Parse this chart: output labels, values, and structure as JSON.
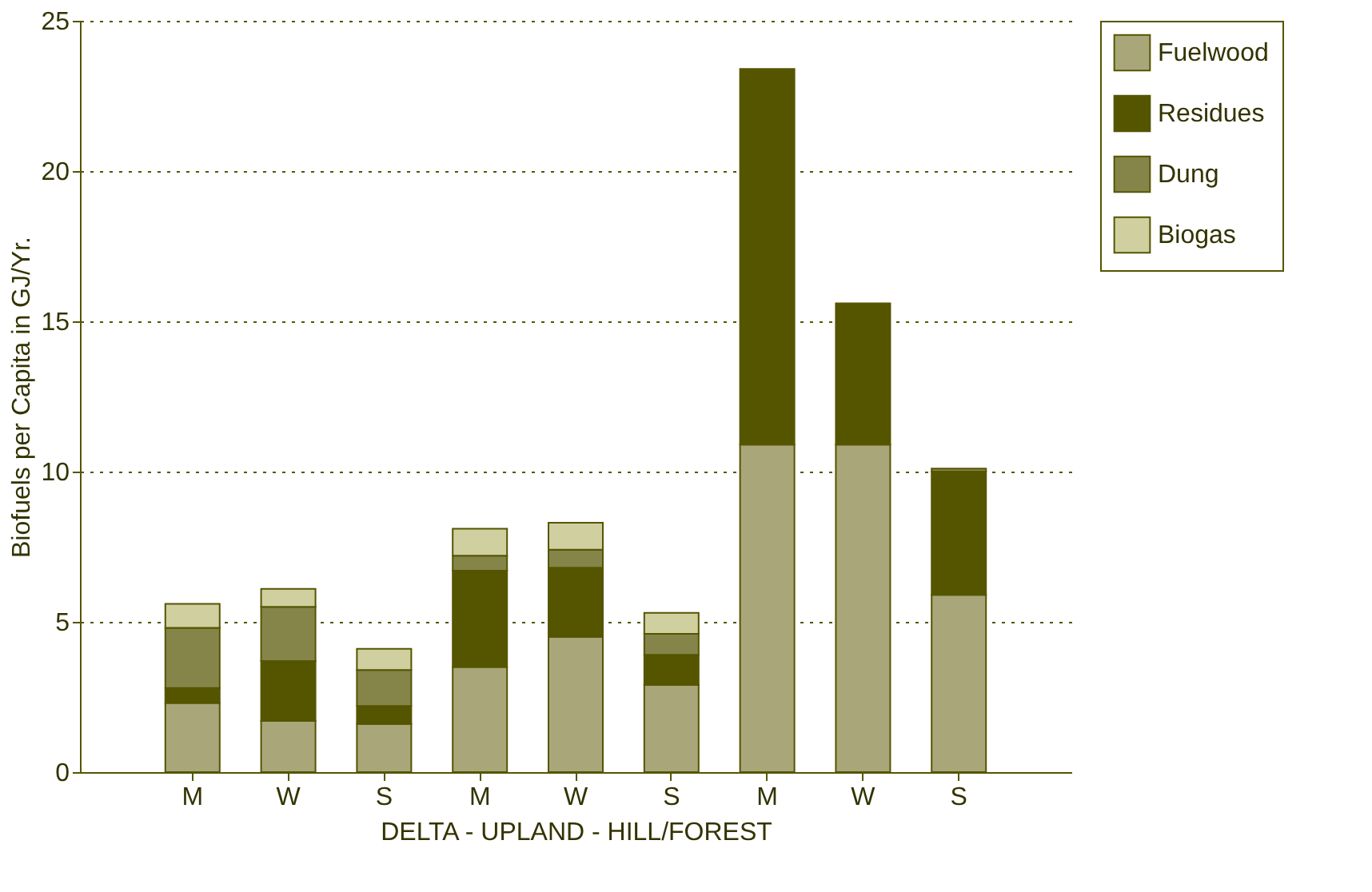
{
  "chart_data": {
    "type": "bar",
    "stacked": true,
    "categories": [
      "M",
      "W",
      "S",
      "M",
      "W",
      "S",
      "M",
      "W",
      "S"
    ],
    "xlabel": "DELTA  -  UPLAND  -  HILL/FOREST",
    "ylabel": "Biofuels per Capita in GJ/Yr.",
    "series": [
      {
        "name": "Fuelwood",
        "color": "#a9a77a",
        "values": [
          2.3,
          1.7,
          1.6,
          3.5,
          4.5,
          2.9,
          10.9,
          10.9,
          5.9
        ]
      },
      {
        "name": "Residues",
        "color": "#555500",
        "values": [
          0.5,
          2.0,
          0.6,
          3.2,
          2.3,
          1.0,
          12.5,
          4.7,
          4.1
        ]
      },
      {
        "name": "Dung",
        "color": "#85854a",
        "values": [
          2.0,
          1.8,
          1.2,
          0.5,
          0.6,
          0.7,
          0,
          0,
          0.1
        ]
      },
      {
        "name": "Biogas",
        "color": "#cfcfa0",
        "values": [
          0.8,
          0.6,
          0.7,
          0.9,
          0.9,
          0.7,
          0,
          0,
          0
        ]
      }
    ],
    "ylim": [
      0,
      25
    ],
    "yticks": [
      0,
      5,
      10,
      15,
      20,
      25
    ],
    "grid": "y",
    "legend": "top right"
  }
}
